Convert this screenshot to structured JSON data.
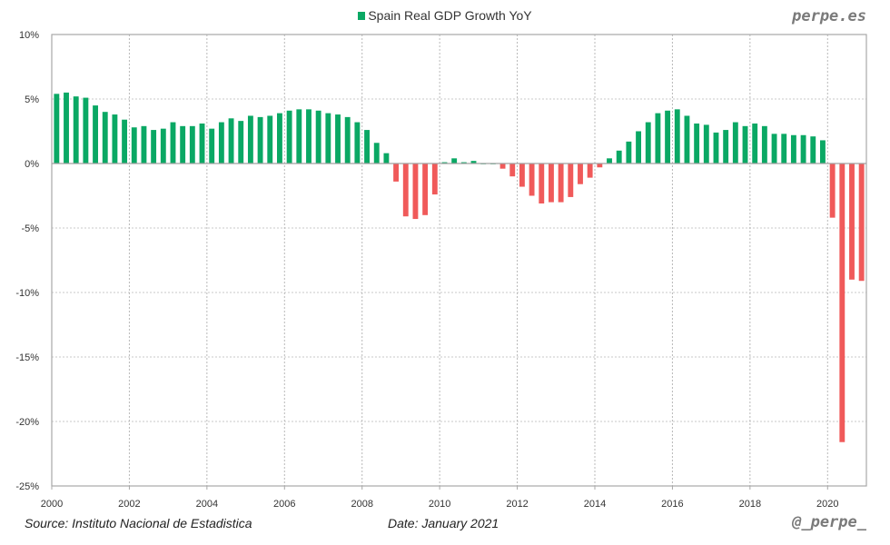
{
  "header": {
    "brand": "perpe.es"
  },
  "footer": {
    "source": "Source: Instituto Nacional de Estadistica",
    "date": "Date: January 2021",
    "handle": "@_perpe_"
  },
  "colors": {
    "positive": "#0aa864",
    "negative": "#f05a5a"
  },
  "chart_data": {
    "type": "bar",
    "title": "",
    "legend": [
      "Spain Real GDP Growth YoY"
    ],
    "legend_position": "top-center",
    "xlabel": "",
    "ylabel": "",
    "ylim": [
      -25,
      10
    ],
    "yticks": [
      10,
      5,
      0,
      -5,
      -10,
      -15,
      -20,
      -25
    ],
    "ytick_labels": [
      "10%",
      "5%",
      "0%",
      "-5%",
      "-10%",
      "-15%",
      "-20%",
      "-25%"
    ],
    "xticks": [
      2000,
      2002,
      2004,
      2006,
      2008,
      2010,
      2012,
      2014,
      2016,
      2018,
      2020
    ],
    "xtick_labels": [
      "2000",
      "2002",
      "2004",
      "2006",
      "2008",
      "2010",
      "2012",
      "2014",
      "2016",
      "2018",
      "2020"
    ],
    "xlim": [
      2000,
      2021
    ],
    "grid": true,
    "frequency": "quarterly",
    "series": [
      {
        "name": "Spain Real GDP Growth YoY",
        "start": "2000Q1",
        "categories": [
          "2000Q1",
          "2000Q2",
          "2000Q3",
          "2000Q4",
          "2001Q1",
          "2001Q2",
          "2001Q3",
          "2001Q4",
          "2002Q1",
          "2002Q2",
          "2002Q3",
          "2002Q4",
          "2003Q1",
          "2003Q2",
          "2003Q3",
          "2003Q4",
          "2004Q1",
          "2004Q2",
          "2004Q3",
          "2004Q4",
          "2005Q1",
          "2005Q2",
          "2005Q3",
          "2005Q4",
          "2006Q1",
          "2006Q2",
          "2006Q3",
          "2006Q4",
          "2007Q1",
          "2007Q2",
          "2007Q3",
          "2007Q4",
          "2008Q1",
          "2008Q2",
          "2008Q3",
          "2008Q4",
          "2009Q1",
          "2009Q2",
          "2009Q3",
          "2009Q4",
          "2010Q1",
          "2010Q2",
          "2010Q3",
          "2010Q4",
          "2011Q1",
          "2011Q2",
          "2011Q3",
          "2011Q4",
          "2012Q1",
          "2012Q2",
          "2012Q3",
          "2012Q4",
          "2013Q1",
          "2013Q2",
          "2013Q3",
          "2013Q4",
          "2014Q1",
          "2014Q2",
          "2014Q3",
          "2014Q4",
          "2015Q1",
          "2015Q2",
          "2015Q3",
          "2015Q4",
          "2016Q1",
          "2016Q2",
          "2016Q3",
          "2016Q4",
          "2017Q1",
          "2017Q2",
          "2017Q3",
          "2017Q4",
          "2018Q1",
          "2018Q2",
          "2018Q3",
          "2018Q4",
          "2019Q1",
          "2019Q2",
          "2019Q3",
          "2019Q4",
          "2020Q1",
          "2020Q2",
          "2020Q3",
          "2020Q4"
        ],
        "values": [
          5.4,
          5.5,
          5.2,
          5.1,
          4.5,
          4.0,
          3.8,
          3.4,
          2.8,
          2.9,
          2.6,
          2.7,
          3.2,
          2.9,
          2.9,
          3.1,
          2.7,
          3.2,
          3.5,
          3.3,
          3.7,
          3.6,
          3.7,
          3.9,
          4.1,
          4.2,
          4.2,
          4.1,
          3.9,
          3.8,
          3.6,
          3.2,
          2.6,
          1.6,
          0.8,
          -1.4,
          -4.1,
          -4.3,
          -4.0,
          -2.4,
          0.1,
          0.4,
          0.1,
          0.2,
          0.0,
          0.0,
          -0.4,
          -1.0,
          -1.8,
          -2.5,
          -3.1,
          -3.0,
          -3.0,
          -2.6,
          -1.6,
          -1.1,
          -0.3,
          0.4,
          1.0,
          1.7,
          2.5,
          3.2,
          3.9,
          4.1,
          4.2,
          3.7,
          3.1,
          3.0,
          2.4,
          2.6,
          3.2,
          2.9,
          3.1,
          2.9,
          2.3,
          2.3,
          2.2,
          2.2,
          2.1,
          1.8,
          -4.2,
          -21.6,
          -9.0,
          -9.1
        ]
      }
    ]
  }
}
